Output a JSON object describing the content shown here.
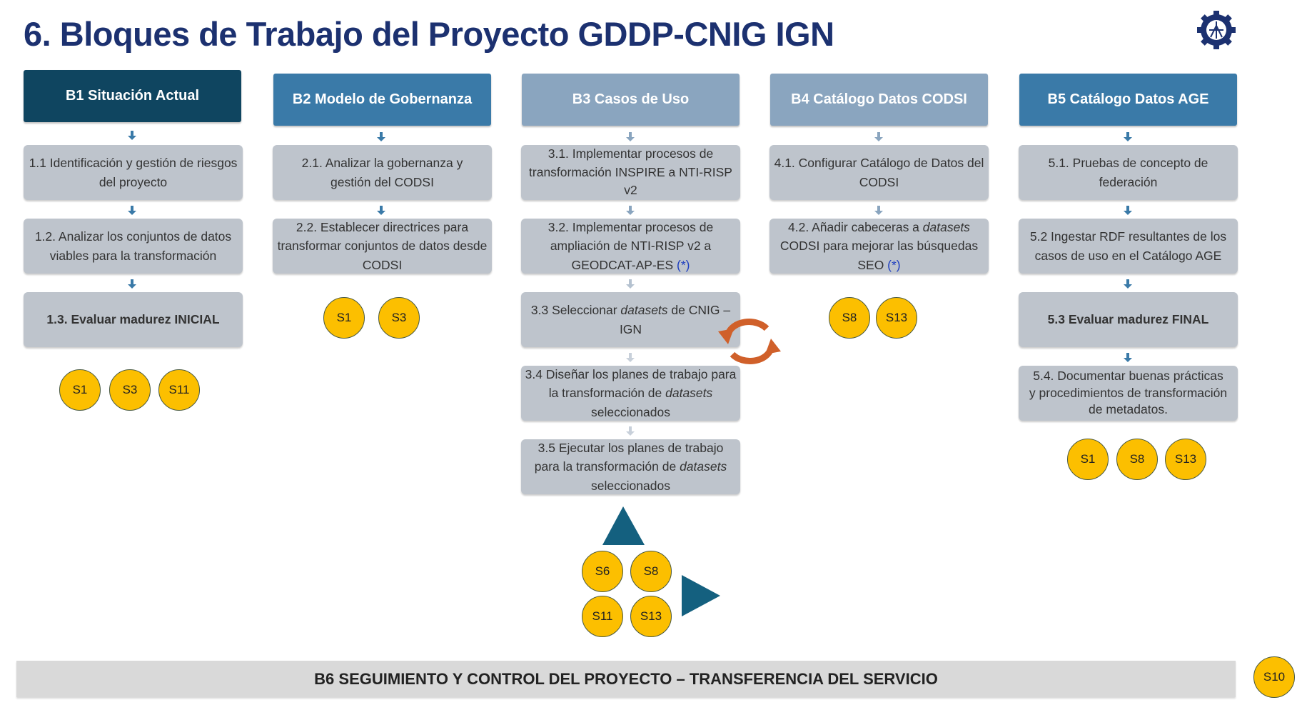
{
  "title": "6. Bloques de Trabajo del Proyecto GDDP-CNIG IGN",
  "logo_icon": "gear-compass-icon",
  "colors": {
    "title": "#1c3170",
    "b1": "#0f4560",
    "b2": "#3a7aa8",
    "b3": "#8aa5bf",
    "b4": "#8aa5bf",
    "b5": "#3a7aa8",
    "box": "#bec4cc",
    "badge": "#fcbf00",
    "cycle": "#d0602a",
    "triangle": "#14607f"
  },
  "columns": [
    {
      "header": "B1 Situación Actual",
      "tasks": [
        {
          "parts": [
            {
              "t": "1.1 Identificación y gestión de riesgos del proyecto"
            }
          ]
        },
        {
          "parts": [
            {
              "t": "1.2. Analizar los conjuntos de datos viables para la transformación"
            }
          ]
        },
        {
          "parts": [
            {
              "t": "1.3. Evaluar madurez INICIAL"
            }
          ]
        }
      ],
      "badges": [
        "S1",
        "S3",
        "S11"
      ]
    },
    {
      "header": "B2 Modelo de Gobernanza",
      "tasks": [
        {
          "parts": [
            {
              "t": "2.1. Analizar la gobernanza y gestión del CODSI"
            }
          ]
        },
        {
          "parts": [
            {
              "t": "2.2. Establecer directrices para transformar conjuntos de datos desde CODSI"
            }
          ]
        }
      ],
      "badges": [
        "S1",
        "S3"
      ]
    },
    {
      "header": "B3 Casos de Uso",
      "tasks": [
        {
          "parts": [
            {
              "t": "3.1. Implementar procesos de transformación INSPIRE a NTI-RISP v2"
            }
          ]
        },
        {
          "parts": [
            {
              "t": "3.2. Implementar procesos de ampliación de NTI-RISP v2 a GEODCAT-AP-ES "
            },
            {
              "t": "(*)"
            }
          ]
        },
        {
          "parts": [
            {
              "t": "3.3 Seleccionar "
            },
            {
              "t": "datasets"
            },
            {
              "t": " de CNIG – IGN"
            }
          ]
        },
        {
          "parts": [
            {
              "t": "3.4 Diseñar los planes de trabajo para la transformación de "
            },
            {
              "t": "datasets"
            },
            {
              "t": " seleccionados"
            }
          ]
        },
        {
          "parts": [
            {
              "t": "3.5 Ejecutar los planes de trabajo para la transformación de "
            },
            {
              "t": "datasets"
            },
            {
              "t": " seleccionados"
            }
          ]
        }
      ],
      "badges": [
        "S6",
        "S8",
        "S11",
        "S13"
      ]
    },
    {
      "header": "B4 Catálogo Datos CODSI",
      "tasks": [
        {
          "parts": [
            {
              "t": "4.1. Configurar Catálogo de Datos del CODSI"
            }
          ]
        },
        {
          "parts": [
            {
              "t": "4.2. Añadir cabeceras a "
            },
            {
              "t": "datasets"
            },
            {
              "t": " CODSI para mejorar las búsquedas SEO "
            },
            {
              "t": "(*)"
            }
          ]
        }
      ],
      "badges": [
        "S8",
        "S13"
      ]
    },
    {
      "header": "B5 Catálogo Datos AGE",
      "tasks": [
        {
          "parts": [
            {
              "t": "5.1. Pruebas de concepto de federación"
            }
          ]
        },
        {
          "parts": [
            {
              "t": "5.2 Ingestar RDF resultantes de los casos de uso en el Catálogo AGE"
            }
          ]
        },
        {
          "parts": [
            {
              "t": "5.3 Evaluar madurez FINAL"
            }
          ]
        },
        {
          "parts": [
            {
              "t": "5.4. Documentar buenas prácticas y procedimientos de transformación de metadatos."
            }
          ]
        }
      ],
      "badges": [
        "S1",
        "S8",
        "S13"
      ]
    }
  ],
  "b6": {
    "label": "B6 SEGUIMIENTO Y CONTROL DEL PROYECTO – TRANSFERENCIA DEL SERVICIO",
    "badge": "S10"
  }
}
